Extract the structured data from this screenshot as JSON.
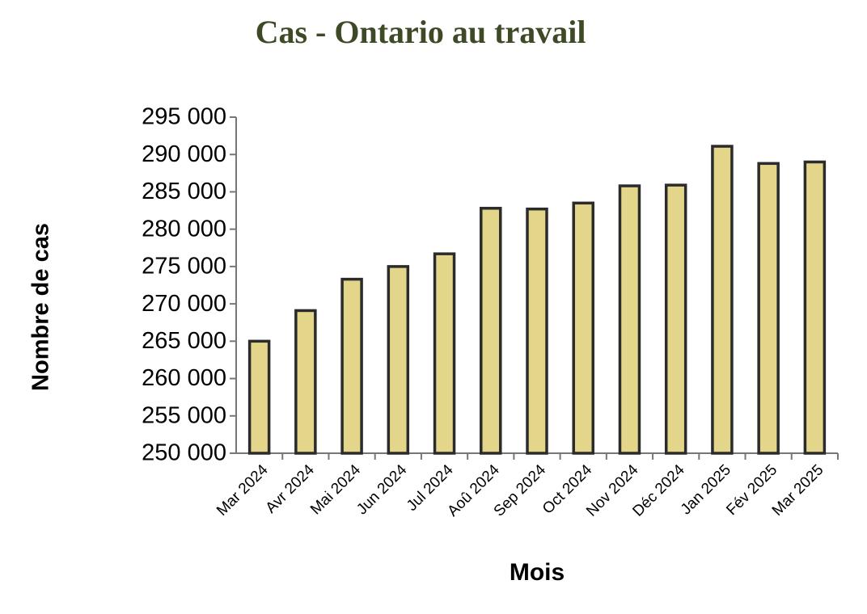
{
  "chart_data": {
    "type": "bar",
    "title": "Cas - Ontario au travail",
    "x_label": "Mois",
    "y_label": "Nombre de cas",
    "categories": [
      "Mar 2024",
      "Avr 2024",
      "Mai 2024",
      "Jun 2024",
      "Jul 2024",
      "Aoû 2024",
      "Sep 2024",
      "Oct 2024",
      "Nov 2024",
      "Déc 2024",
      "Jan 2025",
      "Fév 2025",
      "Mar 2025"
    ],
    "values": [
      265000,
      269100,
      273300,
      275000,
      276700,
      282800,
      282700,
      283500,
      285800,
      285900,
      291100,
      288800,
      289000
    ],
    "color": "#e3d58a",
    "ylim": [
      250000,
      295000
    ],
    "yticks": [
      {
        "value": 250000,
        "label": "250 000"
      },
      {
        "value": 255000,
        "label": "255 000"
      },
      {
        "value": 260000,
        "label": "260 000"
      },
      {
        "value": 265000,
        "label": "265 000"
      },
      {
        "value": 270000,
        "label": "270 000"
      },
      {
        "value": 275000,
        "label": "275 000"
      },
      {
        "value": 280000,
        "label": "280 000"
      },
      {
        "value": 285000,
        "label": "285 000"
      },
      {
        "value": 290000,
        "label": "290 000"
      },
      {
        "value": 295000,
        "label": "295 000"
      }
    ]
  }
}
